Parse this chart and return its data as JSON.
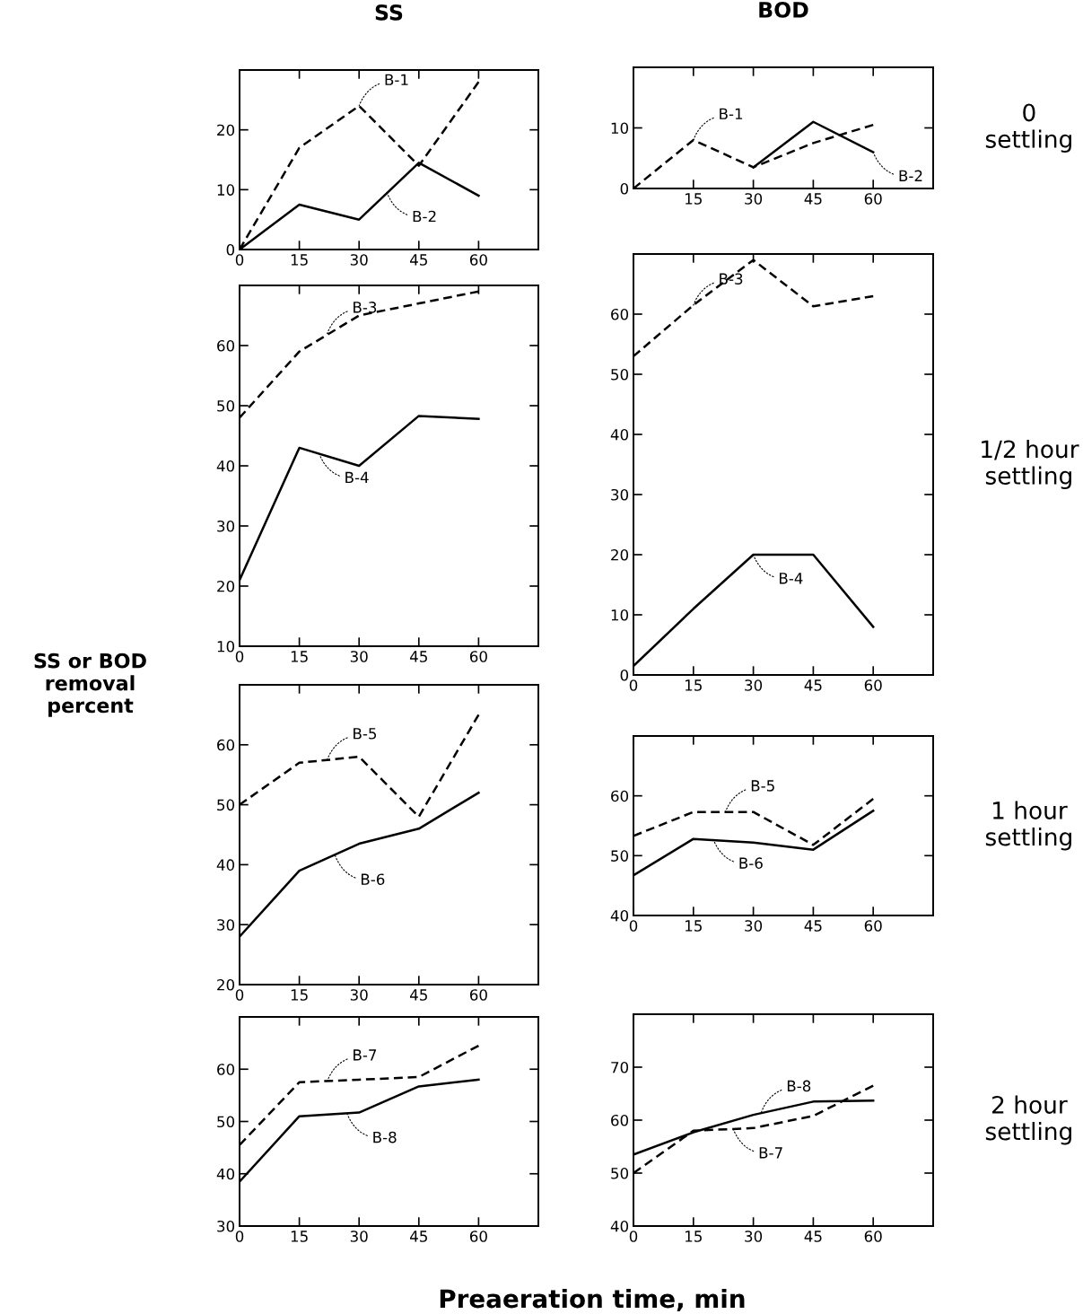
{
  "chart_data": [
    {
      "type": "line",
      "title": "SS",
      "x": [
        0,
        15,
        30,
        45,
        60
      ],
      "xlim": [
        0,
        75
      ],
      "xticks": [
        0,
        15,
        30,
        45,
        60
      ],
      "ylim": [
        0,
        30
      ],
      "yticks": [
        0,
        10,
        20
      ],
      "series": [
        {
          "color": "#000000",
          "line_style": "dashed",
          "values": [
            0,
            17,
            24,
            14,
            28
          ]
        },
        {
          "color": "#000000",
          "line_style": "solid",
          "values": [
            0,
            7.5,
            5,
            14.5,
            9
          ]
        }
      ],
      "annotations": [
        {
          "text": "B-1",
          "x": 30,
          "y": 24
        },
        {
          "text": "B-2",
          "x": 37,
          "y": 9.5
        }
      ]
    },
    {
      "type": "line",
      "title": "BOD",
      "x": [
        0,
        15,
        30,
        45,
        60
      ],
      "xlim": [
        0,
        75
      ],
      "xticks": [
        15,
        30,
        45,
        60
      ],
      "ylim": [
        0,
        20
      ],
      "yticks": [
        0,
        10
      ],
      "series": [
        {
          "color": "#000000",
          "line_style": "dashed",
          "values": [
            0,
            8,
            3.5,
            7.5,
            10.5
          ]
        },
        {
          "color": "#000000",
          "line_style": "solid",
          "values": [
            null,
            null,
            3.5,
            11,
            6
          ]
        }
      ],
      "annotations": [
        {
          "text": "B-1",
          "x": 15,
          "y": 8
        },
        {
          "text": "B-2",
          "x": 60,
          "y": 6
        },
        "0\nsettling"
      ]
    },
    {
      "type": "line",
      "x": [
        0,
        15,
        30,
        45,
        60
      ],
      "xlim": [
        0,
        75
      ],
      "xticks": [
        0,
        15,
        30,
        45,
        60
      ],
      "ylim": [
        10,
        70
      ],
      "yticks": [
        10,
        20,
        30,
        40,
        50,
        60
      ],
      "series": [
        {
          "color": "#000000",
          "line_style": "dashed",
          "values": [
            48,
            59,
            65,
            67,
            69
          ]
        },
        {
          "color": "#000000",
          "line_style": "solid",
          "values": [
            21,
            43,
            40,
            48.3,
            47.8
          ]
        }
      ],
      "annotations": [
        {
          "text": "B-3",
          "x": 22,
          "y": 62
        },
        {
          "text": "B-4",
          "x": 20,
          "y": 42
        }
      ]
    },
    {
      "type": "line",
      "x": [
        0,
        15,
        30,
        45,
        60
      ],
      "xlim": [
        0,
        75
      ],
      "xticks": [
        0,
        15,
        30,
        45,
        60
      ],
      "ylim": [
        0,
        70
      ],
      "yticks": [
        0,
        10,
        20,
        30,
        40,
        50,
        60
      ],
      "series": [
        {
          "color": "#000000",
          "line_style": "dashed",
          "values": [
            53,
            61.5,
            69,
            61.3,
            63
          ]
        },
        {
          "color": "#000000",
          "line_style": "solid",
          "values": [
            1.5,
            11,
            20,
            20,
            8
          ]
        }
      ],
      "annotations": [
        {
          "text": "B-3",
          "x": 15,
          "y": 61.5
        },
        {
          "text": "B-4",
          "x": 30,
          "y": 20
        },
        "1/2 hour\nsettling"
      ]
    },
    {
      "type": "line",
      "ylabel": "SS or BOD\nremoval\npercent",
      "x": [
        0,
        15,
        30,
        45,
        60
      ],
      "xlim": [
        0,
        75
      ],
      "xticks": [
        0,
        15,
        30,
        45,
        60
      ],
      "ylim": [
        20,
        70
      ],
      "yticks": [
        20,
        30,
        40,
        50,
        60
      ],
      "series": [
        {
          "color": "#000000",
          "line_style": "dashed",
          "values": [
            50,
            57,
            58,
            48,
            65
          ]
        },
        {
          "color": "#000000",
          "line_style": "solid",
          "values": [
            28,
            39,
            43.5,
            46,
            52
          ]
        }
      ],
      "annotations": [
        {
          "text": "B-5",
          "x": 22,
          "y": 57.5
        },
        {
          "text": "B-6",
          "x": 24,
          "y": 41.5
        }
      ]
    },
    {
      "type": "line",
      "x": [
        0,
        15,
        30,
        45,
        60
      ],
      "xlim": [
        0,
        75
      ],
      "xticks": [
        0,
        15,
        30,
        45,
        60
      ],
      "ylim": [
        40,
        70
      ],
      "yticks": [
        40,
        50,
        60
      ],
      "series": [
        {
          "color": "#000000",
          "line_style": "dashed",
          "values": [
            53.3,
            57.3,
            57.3,
            51.8,
            59.5
          ]
        },
        {
          "color": "#000000",
          "line_style": "solid",
          "values": [
            46.7,
            52.8,
            52.2,
            51,
            57.5
          ]
        }
      ],
      "annotations": [
        {
          "text": "B-5",
          "x": 23,
          "y": 57.3
        },
        {
          "text": "B-6",
          "x": 20,
          "y": 52.7
        },
        "1 hour\nsettling"
      ]
    },
    {
      "type": "line",
      "xlabel": "Preaeration time, min",
      "x": [
        0,
        15,
        30,
        45,
        60
      ],
      "xlim": [
        0,
        75
      ],
      "xticks": [
        0,
        15,
        30,
        45,
        60
      ],
      "ylim": [
        30,
        70
      ],
      "yticks": [
        30,
        40,
        50,
        60
      ],
      "series": [
        {
          "color": "#000000",
          "line_style": "dashed",
          "values": [
            45.5,
            57.5,
            58,
            58.5,
            64.5
          ]
        },
        {
          "color": "#000000",
          "line_style": "solid",
          "values": [
            38.5,
            51,
            51.7,
            56.7,
            58
          ]
        }
      ],
      "annotations": [
        {
          "text": "B-7",
          "x": 22,
          "y": 57.7
        },
        {
          "text": "B-8",
          "x": 27,
          "y": 51.5
        }
      ]
    },
    {
      "type": "line",
      "x": [
        0,
        15,
        30,
        45,
        60
      ],
      "xlim": [
        0,
        75
      ],
      "xticks": [
        0,
        15,
        30,
        45,
        60
      ],
      "ylim": [
        40,
        80
      ],
      "yticks": [
        40,
        50,
        60,
        70
      ],
      "series": [
        {
          "color": "#000000",
          "line_style": "dashed",
          "values": [
            50,
            58,
            58.5,
            60.8,
            66.5
          ]
        },
        {
          "color": "#000000",
          "line_style": "solid",
          "values": [
            53.5,
            57.7,
            61,
            63.5,
            63.7
          ]
        }
      ],
      "annotations": [
        {
          "text": "B-8",
          "x": 32,
          "y": 61.5
        },
        {
          "text": "B-7",
          "x": 25,
          "y": 58.3
        },
        "2 hour\nsettling"
      ]
    }
  ]
}
